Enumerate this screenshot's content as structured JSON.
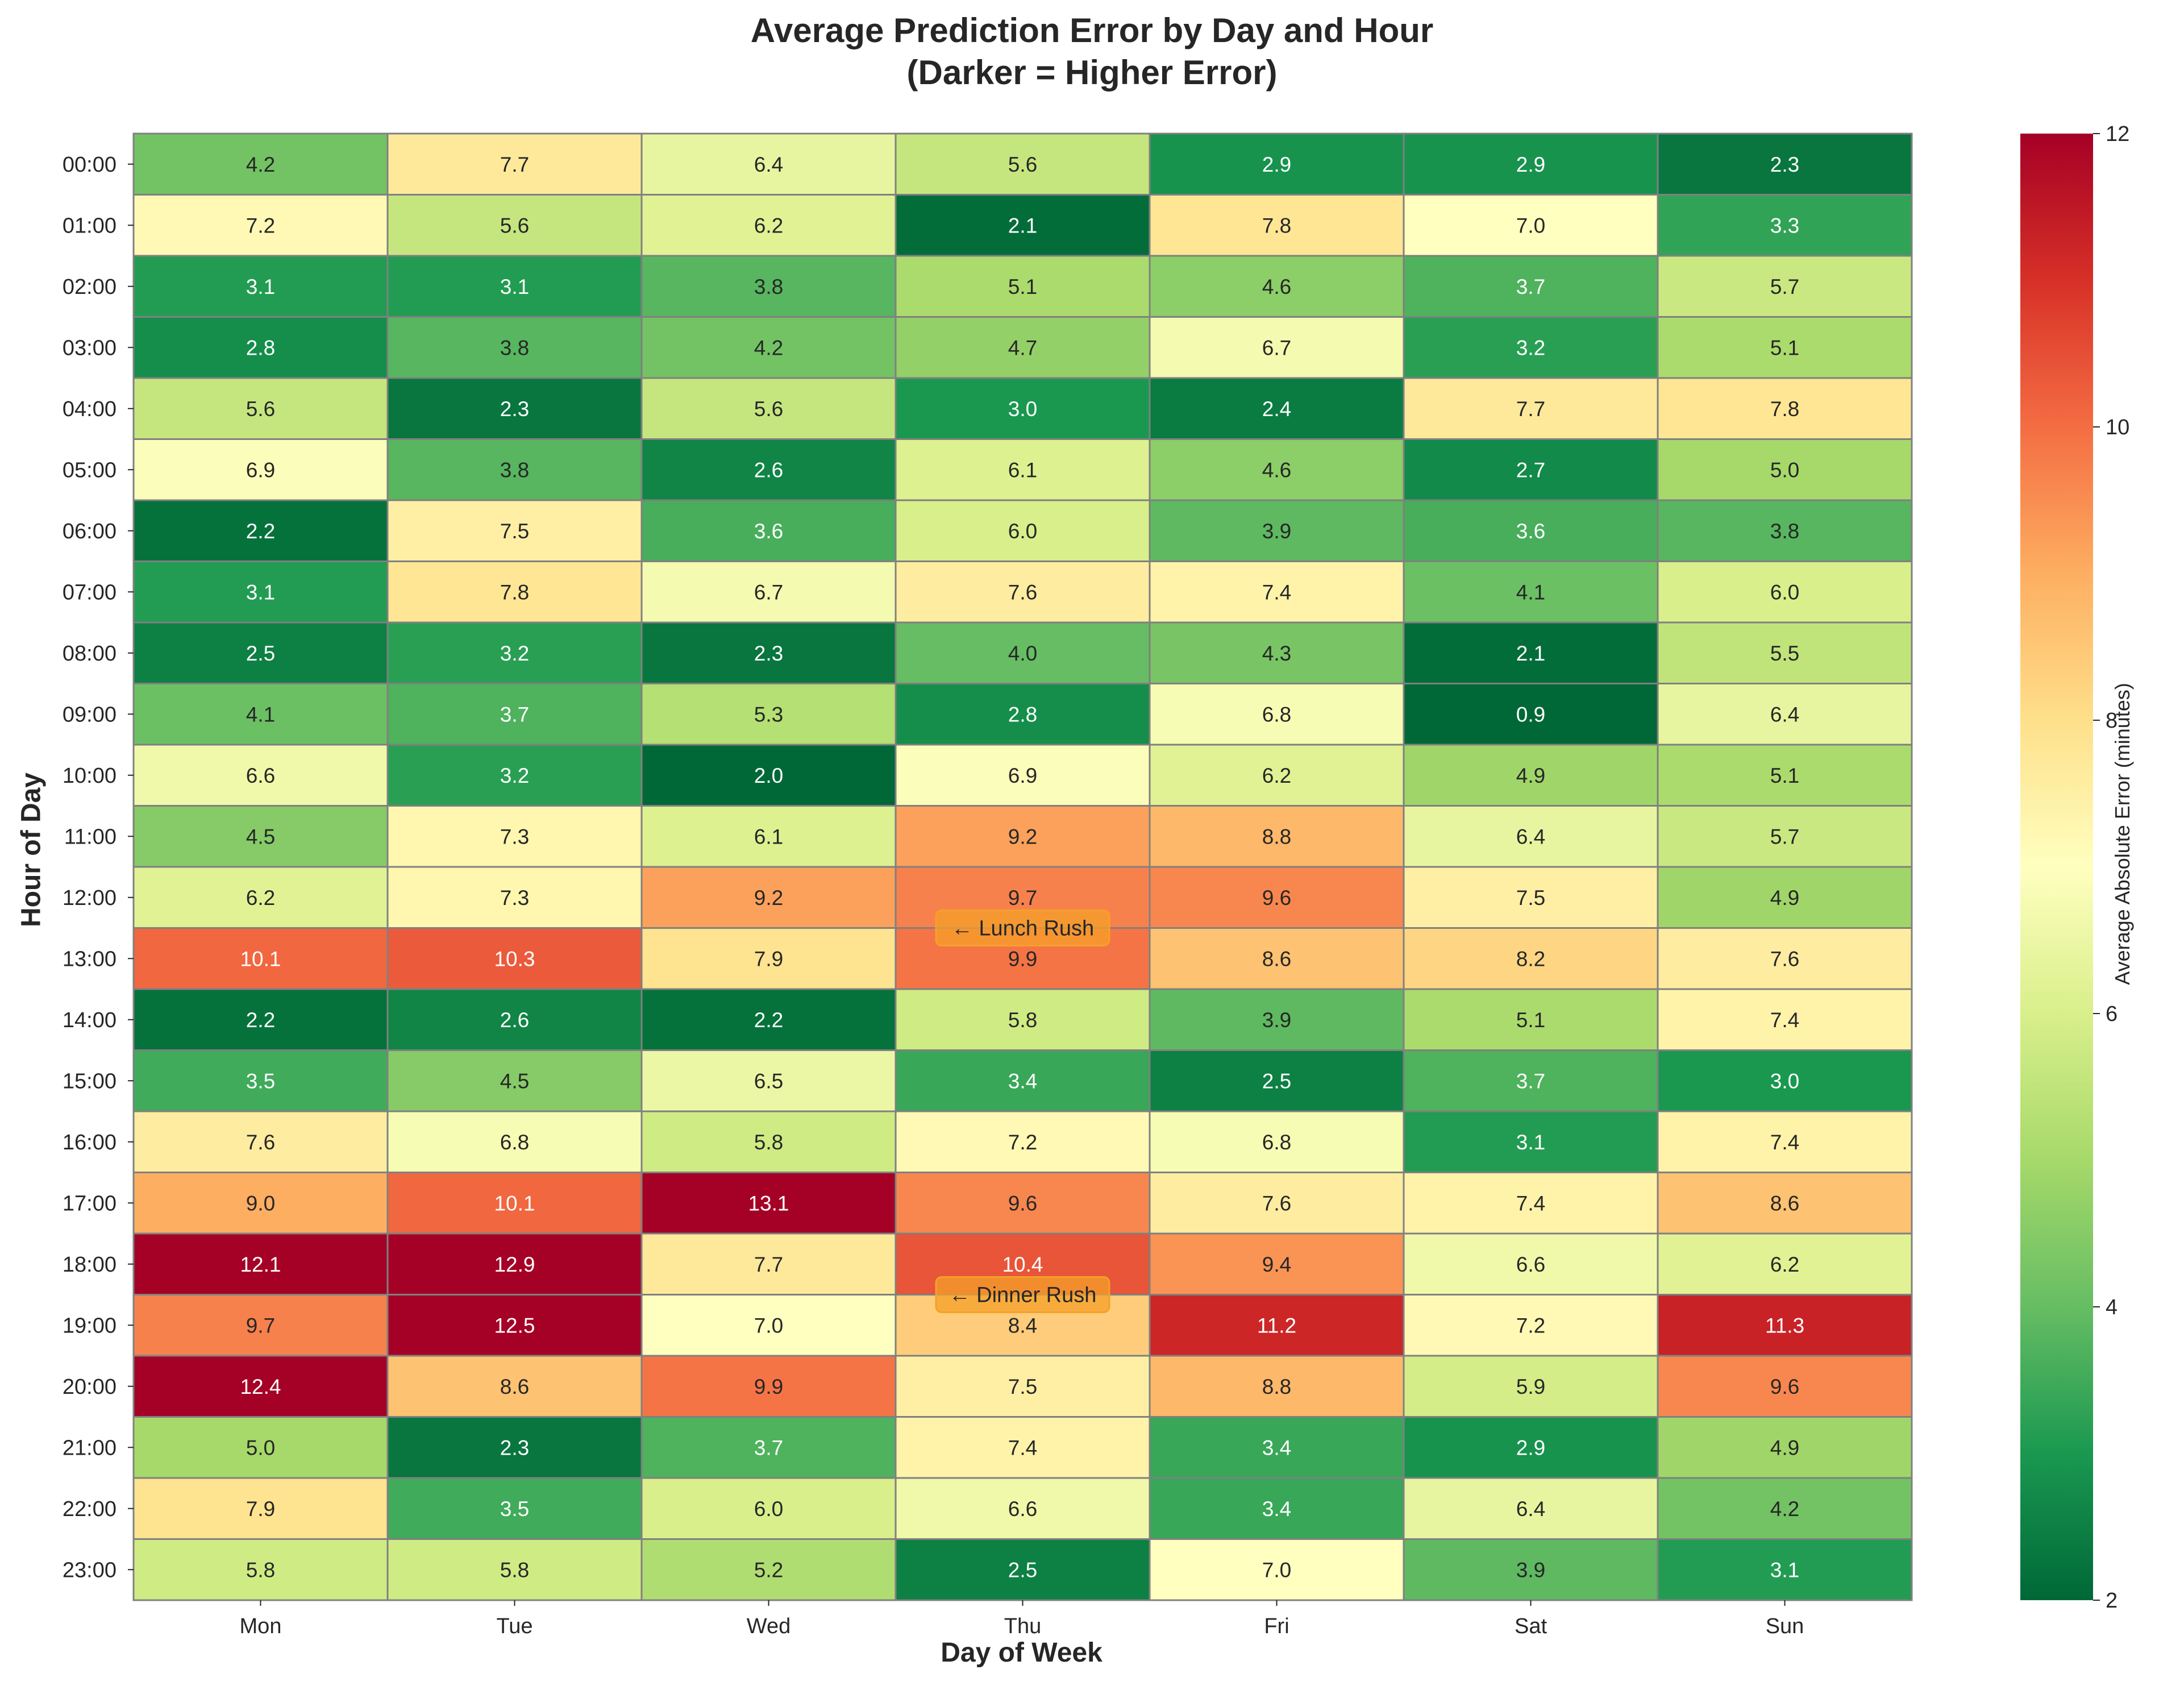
{
  "chart_data": {
    "type": "heatmap",
    "title": "Average Prediction Error by Day and Hour",
    "subtitle": "(Darker = Higher Error)",
    "xlabel": "Day of Week",
    "ylabel": "Hour of Day",
    "x_categories": [
      "Mon",
      "Tue",
      "Wed",
      "Thu",
      "Fri",
      "Sat",
      "Sun"
    ],
    "y_categories": [
      "00:00",
      "01:00",
      "02:00",
      "03:00",
      "04:00",
      "05:00",
      "06:00",
      "07:00",
      "08:00",
      "09:00",
      "10:00",
      "11:00",
      "12:00",
      "13:00",
      "14:00",
      "15:00",
      "16:00",
      "17:00",
      "18:00",
      "19:00",
      "20:00",
      "21:00",
      "22:00",
      "23:00"
    ],
    "values": [
      [
        4.2,
        7.7,
        6.4,
        5.6,
        2.9,
        2.9,
        2.3
      ],
      [
        7.2,
        5.6,
        6.2,
        2.1,
        7.8,
        7.0,
        3.3
      ],
      [
        3.1,
        3.1,
        3.8,
        5.1,
        4.6,
        3.7,
        5.7
      ],
      [
        2.8,
        3.8,
        4.2,
        4.7,
        6.7,
        3.2,
        5.1
      ],
      [
        5.6,
        2.3,
        5.6,
        3.0,
        2.4,
        7.7,
        7.8
      ],
      [
        6.9,
        3.8,
        2.6,
        6.1,
        4.6,
        2.7,
        5.0
      ],
      [
        2.2,
        7.5,
        3.6,
        6.0,
        3.9,
        3.6,
        3.8
      ],
      [
        3.1,
        7.8,
        6.7,
        7.6,
        7.4,
        4.1,
        6.0
      ],
      [
        2.5,
        3.2,
        2.3,
        4.0,
        4.3,
        2.1,
        5.5
      ],
      [
        4.1,
        3.7,
        5.3,
        2.8,
        6.8,
        0.9,
        6.4
      ],
      [
        6.6,
        3.2,
        2.0,
        6.9,
        6.2,
        4.9,
        5.1
      ],
      [
        4.5,
        7.3,
        6.1,
        9.2,
        8.8,
        6.4,
        5.7
      ],
      [
        6.2,
        7.3,
        9.2,
        9.7,
        9.6,
        7.5,
        4.9
      ],
      [
        10.1,
        10.3,
        7.9,
        9.9,
        8.6,
        8.2,
        7.6
      ],
      [
        2.2,
        2.6,
        2.2,
        5.8,
        3.9,
        5.1,
        7.4
      ],
      [
        3.5,
        4.5,
        6.5,
        3.4,
        2.5,
        3.7,
        3.0
      ],
      [
        7.6,
        6.8,
        5.8,
        7.2,
        6.8,
        3.1,
        7.4
      ],
      [
        9.0,
        10.1,
        13.1,
        9.6,
        7.6,
        7.4,
        8.6
      ],
      [
        12.1,
        12.9,
        7.7,
        10.4,
        9.4,
        6.6,
        6.2
      ],
      [
        9.7,
        12.5,
        7.0,
        8.4,
        11.2,
        7.2,
        11.3
      ],
      [
        12.4,
        8.6,
        9.9,
        7.5,
        8.8,
        5.9,
        9.6
      ],
      [
        5.0,
        2.3,
        3.7,
        7.4,
        3.4,
        2.9,
        4.9
      ],
      [
        7.9,
        3.5,
        6.0,
        6.6,
        3.4,
        6.4,
        4.2
      ],
      [
        5.8,
        5.8,
        5.2,
        2.5,
        7.0,
        3.9,
        3.1
      ]
    ],
    "colorbar": {
      "label": "Average Absolute Error (minutes)",
      "min": 2,
      "max": 12,
      "ticks": [
        2,
        4,
        6,
        8,
        10,
        12
      ],
      "colormap": "RdYlGn_r"
    },
    "annotations": [
      {
        "text": "← Lunch Rush",
        "anchor_day": "Thu",
        "anchor_hour": "12:00"
      },
      {
        "text": "← Dinner Rush",
        "anchor_day": "Thu",
        "anchor_hour": "18:00"
      }
    ],
    "annotation_color": "#f5a02a",
    "cell_border_color": "#808080",
    "grid": false
  }
}
